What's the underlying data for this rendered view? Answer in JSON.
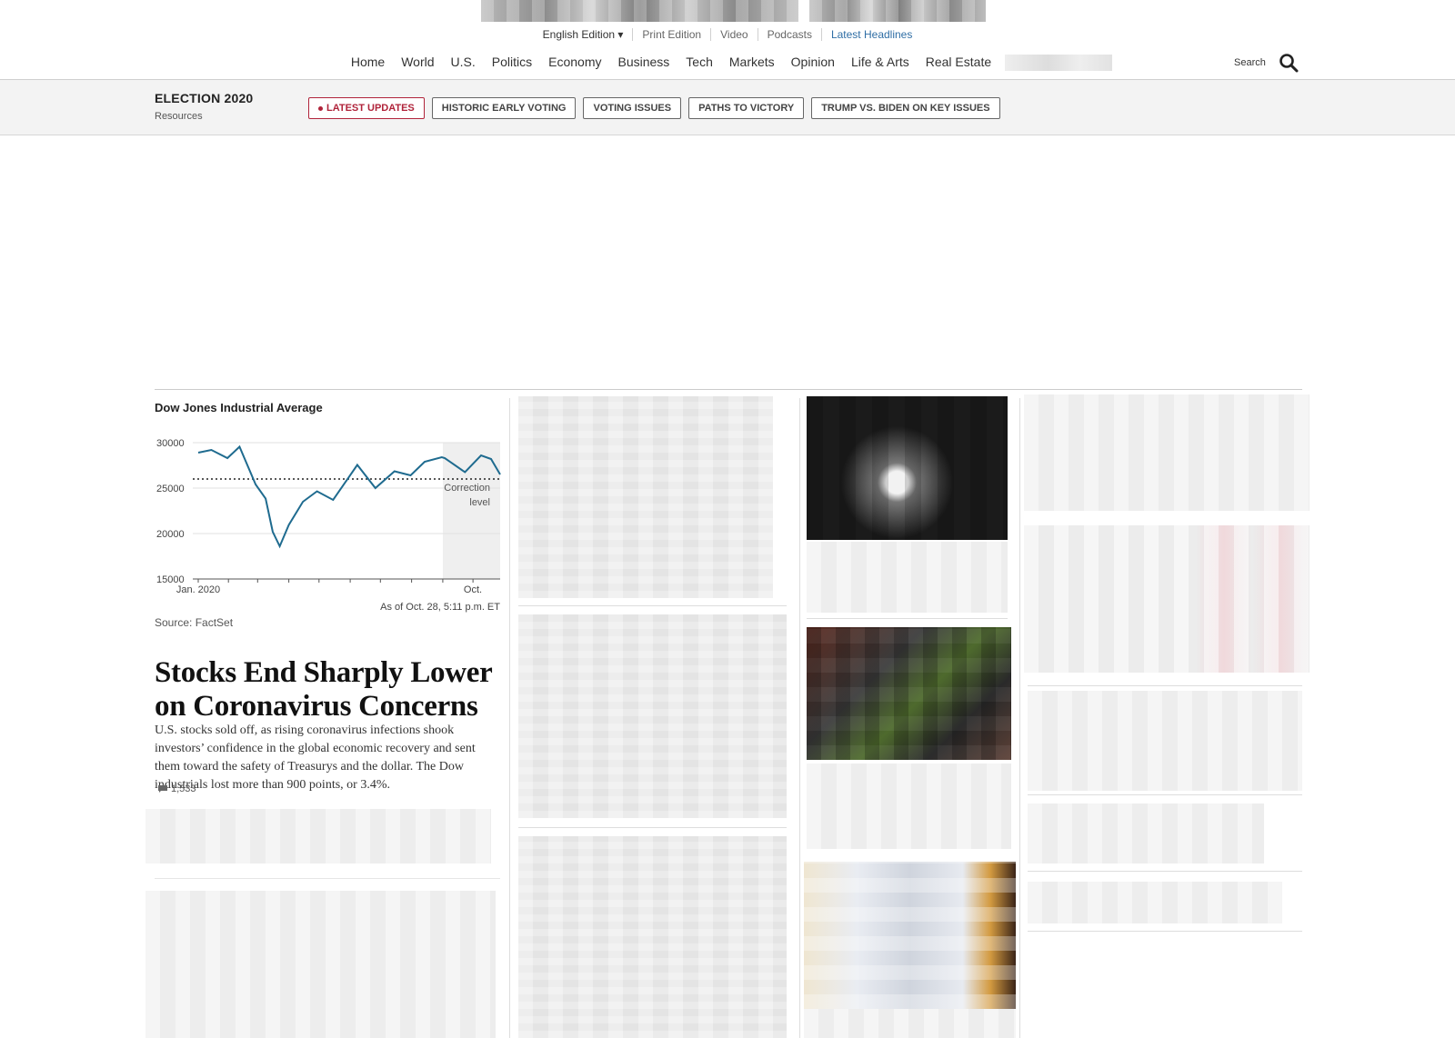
{
  "edition_bar": {
    "items": [
      "English Edition ▾",
      "Print Edition",
      "Video",
      "Podcasts",
      "Latest Headlines"
    ]
  },
  "nav": {
    "items": [
      "Home",
      "World",
      "U.S.",
      "Politics",
      "Economy",
      "Business",
      "Tech",
      "Markets",
      "Opinion",
      "Life & Arts",
      "Real Estate"
    ],
    "search_label": "Search"
  },
  "election": {
    "title": "ELECTION 2020",
    "subtitle": "Resources",
    "pills": [
      "LATEST UPDATES",
      "HISTORIC EARLY VOTING",
      "VOTING ISSUES",
      "PATHS TO VICTORY",
      "TRUMP VS. BIDEN ON KEY ISSUES"
    ]
  },
  "markets": {
    "chart_title": "Dow Jones Industrial Average",
    "annotation_line1": "Correction",
    "annotation_line2": "level",
    "as_of": "As of Oct. 28, 5:11 p.m. ET",
    "source": "Source: FactSet"
  },
  "lead_story": {
    "headline": "Stocks End Sharply Lower on Coronavirus Concerns",
    "summary": "U.S. stocks sold off, as rising coronavirus infections shook investors’ confidence in the global economic recovery and sent them toward the safety of Treasurys and the dollar. The Dow industrials lost more than 900 points, or 3.4%.",
    "comment_count": "1,533"
  },
  "colors": {
    "accent_link": "#2f6ea5",
    "live_red": "#b0233a",
    "chart_line": "#1f6b8f"
  },
  "chart_data": {
    "type": "line",
    "title": "Dow Jones Industrial Average",
    "x_tick_labels": [
      "Jan. 2020",
      "Oct."
    ],
    "y_tick_labels": [
      "30000",
      "25000",
      "20000",
      "15000"
    ],
    "ylim": [
      15000,
      30000
    ],
    "reference_line": {
      "label": "Correction level",
      "value": 26000
    },
    "shaded_region": "Oct.",
    "series": [
      {
        "x": [
          "2020-01-02",
          "2020-01-15",
          "2020-01-31",
          "2020-02-12",
          "2020-02-28",
          "2020-03-09",
          "2020-03-16",
          "2020-03-23",
          "2020-04-01",
          "2020-04-15",
          "2020-04-29",
          "2020-05-15",
          "2020-06-08",
          "2020-06-26",
          "2020-07-15",
          "2020-07-31",
          "2020-08-14",
          "2020-08-31",
          "2020-09-03",
          "2020-09-23",
          "2020-10-09",
          "2020-10-19",
          "2020-10-28"
        ],
        "values": [
          28900,
          29200,
          28300,
          29550,
          25400,
          23850,
          20200,
          18600,
          20950,
          23500,
          24650,
          23700,
          27550,
          25000,
          26850,
          26400,
          27900,
          28400,
          28300,
          26750,
          28600,
          28200,
          26500
        ]
      }
    ]
  }
}
